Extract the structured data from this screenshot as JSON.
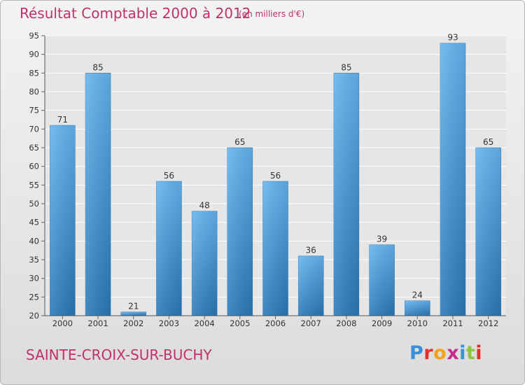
{
  "header": {
    "title": "Résultat Comptable 2000 à 2012",
    "subtitle": "(en milliers d'€)"
  },
  "footer": {
    "commune": "SAINTE-CROIX-SUR-BUCHY",
    "logo": "Proxiti"
  },
  "colors": {
    "title": "#c0306a",
    "bar_top": "#64b4ee",
    "bar_bottom": "#2a78b8",
    "logo_letters": [
      "#3b8fd8",
      "#e0312c",
      "#f4a21c",
      "#c42d8a",
      "#3b8fd8",
      "#8cc63f",
      "#e0312c"
    ]
  },
  "chart_data": {
    "type": "bar",
    "title": "Résultat Comptable 2000 à 2012",
    "subtitle": "(en milliers d'€)",
    "categories": [
      "2000",
      "2001",
      "2002",
      "2003",
      "2004",
      "2005",
      "2006",
      "2007",
      "2008",
      "2009",
      "2010",
      "2011",
      "2012"
    ],
    "values": [
      71,
      85,
      21,
      56,
      48,
      65,
      56,
      36,
      85,
      39,
      24,
      93,
      65
    ],
    "ylim": [
      20,
      95
    ],
    "yticks": [
      20,
      25,
      30,
      35,
      40,
      45,
      50,
      55,
      60,
      65,
      70,
      75,
      80,
      85,
      90,
      95
    ],
    "grid": true,
    "data_labels": true
  }
}
